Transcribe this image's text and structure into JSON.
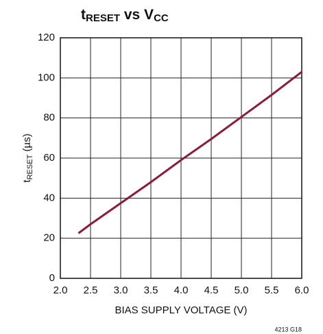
{
  "chart_data": {
    "type": "line",
    "title": [
      "t",
      "RESET",
      " vs V",
      "CC"
    ],
    "xlabel": "BIAS SUPPLY VOLTAGE (V)",
    "ylabel": [
      "t",
      "RESET",
      " (µs)"
    ],
    "note": "4213 G18",
    "x": [
      2.3,
      2.5,
      3.0,
      3.5,
      4.0,
      4.5,
      5.0,
      5.5,
      6.0
    ],
    "series": [
      {
        "name": "tRESET",
        "color": "#8c1a3c",
        "values": [
          22.5,
          27,
          37.5,
          48,
          59,
          69.5,
          80.5,
          91.5,
          103
        ]
      }
    ],
    "xlim": [
      2,
      6
    ],
    "xticks": [
      {
        "value": 2,
        "label": "2.0"
      },
      2.5,
      {
        "value": 3,
        "label": "3.0"
      },
      3.5,
      {
        "value": 4,
        "label": "4.0"
      },
      4.5,
      {
        "value": 5,
        "label": "5.0"
      },
      5.5,
      {
        "value": 6,
        "label": "6.0"
      }
    ],
    "ylim": [
      0,
      120
    ],
    "yticks": [
      0,
      20,
      40,
      60,
      80,
      100,
      120
    ],
    "grid": true
  }
}
